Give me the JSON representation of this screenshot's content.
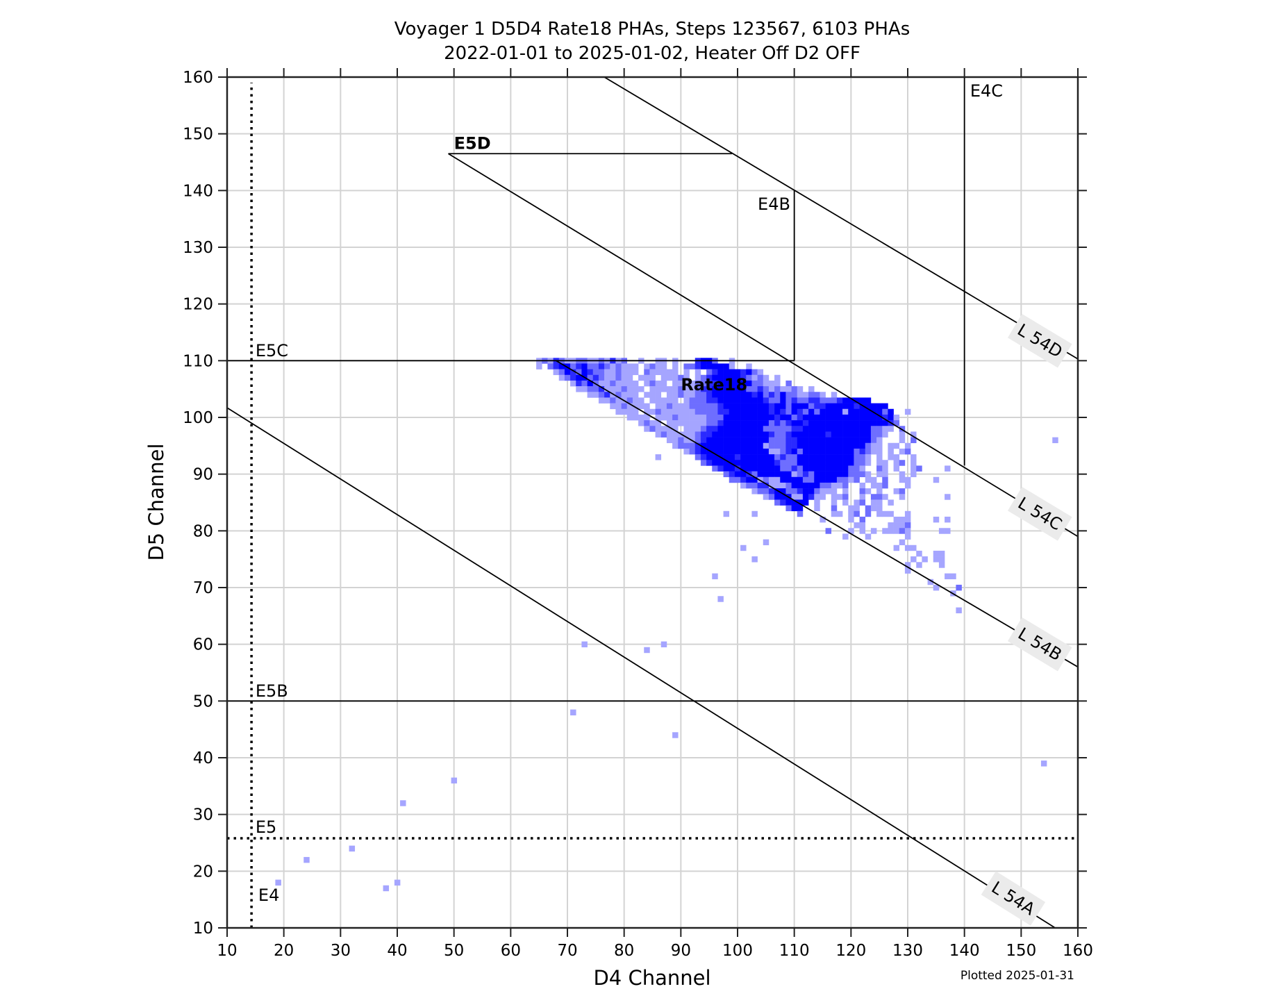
{
  "chart_data": {
    "type": "heatmap",
    "title": "Voyager 1 D5D4 Rate18 PHAs, Steps 123567, 6103 PHAs",
    "subtitle": "2022-01-01 to 2025-01-02, Heater Off D2 OFF",
    "xlabel": "D4 Channel",
    "ylabel": "D5 Channel",
    "xlim": [
      10,
      160
    ],
    "ylim": [
      10,
      160
    ],
    "xticks": [
      "10",
      "20",
      "30",
      "40",
      "50",
      "60",
      "70",
      "80",
      "90",
      "100",
      "110",
      "120",
      "130",
      "140",
      "150",
      "160"
    ],
    "yticks": [
      "10",
      "20",
      "30",
      "40",
      "50",
      "60",
      "70",
      "80",
      "90",
      "100",
      "110",
      "120",
      "130",
      "140",
      "150",
      "160"
    ],
    "grid": true,
    "footer": "Plotted 2025-01-31",
    "level_colors": {
      "a": "#a5a5ff",
      "b": "#6e6eff",
      "c": "#2a2aff",
      "d": "#0000ff"
    },
    "histogram_rows": [
      {
        "d5": 110,
        "d4_start": 65,
        "levels": "abacbaabbaabacab..a..aa.a...cddb..a.................................."
      },
      {
        "d5": 109,
        "d4_start": 65,
        "levels": "a.bcddbcdbbcbabaaa.abaa.a.bbcddddda..a.............................."
      },
      {
        "d5": 108,
        "d4_start": 65,
        "levels": "...abdcbdcbbaabaaa.baaaaa.a.a.bcddddcdba............................."
      },
      {
        "d5": 107,
        "d4_start": 65,
        "levels": "....abcddbcbaabaa.aaa.aaaba.abcdddddcbaba.a.........................."
      },
      {
        "d5": 106,
        "d4_start": 65,
        "levels": "......acbdbaabaaaa.abaa.aaaabbccddddddbbaaa.b........................"
      },
      {
        "d5": 105,
        "d4_start": 65,
        "levels": ".......aabbcaaabaaa.aaaaabaabccddddddbbcbabaaba.a...................."
      },
      {
        "d5": 104,
        "d4_start": 65,
        "levels": ".........aabcabaaa.aaa.aabaabbcdddddddcdbcbdbbaabba.a................"
      },
      {
        "d5": 103,
        "d4_start": 65,
        "levels": "...........aabaabaa.aaaaa.abbbccddddddddcbbdbcbbccbbbcddddd.........."
      },
      {
        "d5": 102,
        "d4_start": 65,
        "levels": ".............aabaaaa.aabaaabbbbbcddddddddcddbdddbccdddddcddddd.......("
      },
      {
        "d5": 101,
        "d4_start": 65,
        "levels": "..............aaaa.aabaaaaaabbbbccdddddddcdcbdcbdbddddaddddddbd..a..."
      },
      {
        "d5": 100,
        "d4_start": 65,
        "levels": "................aaaa.aaabaaaaabbbdddddddddcddbcddddddddddddddcda....."
      },
      {
        "d5": 99,
        "d4_start": 65,
        "levels": "..................abaa.aaaaaaabbcddddddddbcbcddcddddddddddddddcb....."
      },
      {
        "d5": 98,
        "d4_start": 65,
        "levels": "...................abaaaa.aaabccddddddddbbbbbccddddddddddddbbaa.b...."
      },
      {
        "d5": 97,
        "d4_start": 65,
        "levels": ".....................abaaaaabccddddddddddcbbcddddddcdddddddbba..a.a.."
      },
      {
        "d5": 96,
        "d4_start": 65,
        "levels": ".......................aabaabcdddddddddddbbbccdddddddddddddba...a.b.."
      },
      {
        "d5": 95,
        "d4_start": 65,
        "levels": "........................abbbcdddddddddddabbbccddddddddddddbaa.aa.a..."
      },
      {
        "d5": 94,
        "d4_start": 65,
        "levels": "..........................abcddddddddddddaabcdbdddddddddbcbaa.a.ab..."
      },
      {
        "d5": 93,
        "d4_start": 65,
        "levels": "............................bcdddddcddddddbcbbddddddddddbba.a.aa..a.."
      },
      {
        "d5": 92,
        "d4_start": 65,
        "levels": ".............................bcdddddddddddcbbbddddddddddbba.aa.ab.a.."
      },
      {
        "d5": 91,
        "d4_start": 65,
        "levels": "...............................bcddcdddddddbbcbddddddddbba..ba.a..ab."
      },
      {
        "d5": 90,
        "d4_start": 65,
        "levels": ".................................bcddcbddddddabcbddddddbbba.aa..a.a.."
      },
      {
        "d5": 89,
        "d4_start": 65,
        "levels": "..................................bbcddabaaddddbbddddbbab.aa.b..aa..."
      },
      {
        "d5": 88,
        "d4_start": 65,
        "levels": "....................................abbccaaabdddddbbaab..a.aab...a..."
      },
      {
        "d5": 87,
        "d4_start": 65,
        "levels": "......................................abbcddbbcddbaaa.a..ba.a..ab...."
      },
      {
        "d5": 86,
        "d4_start": 65,
        "levels": "........................................abdddaadcaa.aab..a.bba..a...."
      },
      {
        "d5": 85,
        "d4_start": 65,
        "levels": "..........................................bcdddd.a..a.a.ab.aa.a......"
      },
      {
        "d5": 84,
        "d4_start": 65,
        "levels": "............................................bdd..a..b..aa.baa........"
      },
      {
        "d5": 83,
        "d4_start": 65,
        "levels": "..............................................b.....aa.ab.b.aaa..a..."
      }
    ],
    "points": [
      [
        115,
        82,
        "a"
      ],
      [
        120,
        82,
        "a"
      ],
      [
        122,
        82,
        "b"
      ],
      [
        128,
        82,
        "a"
      ],
      [
        129,
        82,
        "a"
      ],
      [
        130,
        82,
        "a"
      ],
      [
        121,
        81,
        "a"
      ],
      [
        122,
        81,
        "a"
      ],
      [
        127,
        81,
        "a"
      ],
      [
        128,
        81,
        "a"
      ],
      [
        129,
        81,
        "a"
      ],
      [
        130,
        81,
        "b"
      ],
      [
        116,
        80,
        "b"
      ],
      [
        120,
        80,
        "a"
      ],
      [
        122,
        80,
        "a"
      ],
      [
        124,
        80,
        "a"
      ],
      [
        126,
        80,
        "a"
      ],
      [
        127,
        80,
        "a"
      ],
      [
        128,
        80,
        "a"
      ],
      [
        129,
        80,
        "b"
      ],
      [
        130,
        80,
        "a"
      ],
      [
        119,
        79,
        "a"
      ],
      [
        123,
        79,
        "a"
      ],
      [
        130,
        79,
        "a"
      ],
      [
        105,
        78,
        "a"
      ],
      [
        129,
        78,
        "a"
      ],
      [
        101,
        77,
        "a"
      ],
      [
        128,
        77,
        "a"
      ],
      [
        130,
        77,
        "a"
      ],
      [
        131,
        77,
        "a"
      ],
      [
        132,
        76,
        "a"
      ],
      [
        135,
        76,
        "a"
      ],
      [
        136,
        76,
        "a"
      ],
      [
        103,
        75,
        "a"
      ],
      [
        131,
        75,
        "a"
      ],
      [
        133,
        75,
        "a"
      ],
      [
        135,
        75,
        "a"
      ],
      [
        136,
        75,
        "a"
      ],
      [
        130,
        74,
        "a"
      ],
      [
        132,
        74,
        "a"
      ],
      [
        136,
        74,
        "a"
      ],
      [
        130,
        73,
        "a"
      ],
      [
        96,
        72,
        "a"
      ],
      [
        137,
        72,
        "a"
      ],
      [
        138,
        72,
        "a"
      ],
      [
        134,
        71,
        "a"
      ],
      [
        135,
        70,
        "a"
      ],
      [
        139,
        70,
        "b"
      ],
      [
        138,
        69,
        "a"
      ],
      [
        97,
        68,
        "a"
      ],
      [
        139,
        66,
        "a"
      ],
      [
        98,
        83,
        "a"
      ],
      [
        103,
        83,
        "a"
      ],
      [
        86,
        93,
        "a"
      ],
      [
        137,
        91,
        "a"
      ],
      [
        135,
        89,
        "a"
      ],
      [
        137,
        86,
        "a"
      ],
      [
        135,
        82,
        "a"
      ],
      [
        137,
        82,
        "a"
      ],
      [
        136,
        80,
        "a"
      ],
      [
        137,
        80,
        "a"
      ],
      [
        156,
        96,
        "a"
      ],
      [
        154,
        39,
        "a"
      ],
      [
        50,
        36,
        "a"
      ],
      [
        41,
        32,
        "a"
      ],
      [
        32,
        24,
        "a"
      ],
      [
        24,
        22,
        "a"
      ],
      [
        19,
        18,
        "a"
      ],
      [
        38,
        17,
        "a"
      ],
      [
        40,
        18,
        "a"
      ],
      [
        73,
        60,
        "a"
      ],
      [
        84,
        59,
        "a"
      ],
      [
        87,
        60,
        "a"
      ],
      [
        71,
        48,
        "a"
      ],
      [
        89,
        44,
        "a"
      ]
    ],
    "boundaries": [
      {
        "id": "L54A",
        "style": "solid",
        "points": [
          [
            10,
            101.7
          ],
          [
            156,
            10
          ]
        ]
      },
      {
        "id": "L54B",
        "style": "solid",
        "points": [
          [
            68,
            110
          ],
          [
            160,
            56
          ]
        ]
      },
      {
        "id": "L54C",
        "style": "solid",
        "points": [
          [
            49,
            146.5
          ],
          [
            160,
            79
          ]
        ]
      },
      {
        "id": "L54D",
        "style": "solid",
        "points": [
          [
            76.5,
            160
          ],
          [
            160,
            110.3
          ]
        ]
      },
      {
        "id": "E5D",
        "style": "solid",
        "points": [
          [
            49,
            146.5
          ],
          [
            99,
            146.5
          ]
        ]
      },
      {
        "id": "E4B",
        "style": "solid",
        "points": [
          [
            110,
            110
          ],
          [
            110,
            140
          ]
        ]
      },
      {
        "id": "E4C",
        "style": "solid",
        "points": [
          [
            140,
            160
          ],
          [
            140,
            91.5
          ]
        ]
      },
      {
        "id": "E5C",
        "style": "solid",
        "points": [
          [
            10,
            110
          ],
          [
            110,
            110
          ]
        ]
      },
      {
        "id": "E5B",
        "style": "solid",
        "points": [
          [
            10,
            50
          ],
          [
            160,
            50
          ]
        ]
      },
      {
        "id": "E4",
        "style": "dotted",
        "points": [
          [
            14.3,
            10
          ],
          [
            14.3,
            159
          ]
        ]
      },
      {
        "id": "E5",
        "style": "dotted",
        "points": [
          [
            10,
            25.8
          ],
          [
            160,
            25.8
          ]
        ]
      }
    ],
    "region_labels": [
      {
        "text": "E5D",
        "bold": true,
        "x": 50,
        "y": 147.3,
        "anchor": "start"
      },
      {
        "text": "E4B",
        "bold": false,
        "x": 109.3,
        "y": 136.6,
        "anchor": "end"
      },
      {
        "text": "E4C",
        "bold": false,
        "x": 141,
        "y": 156.6,
        "anchor": "start"
      },
      {
        "text": "E5C",
        "bold": false,
        "x": 15,
        "y": 110.8,
        "anchor": "start"
      },
      {
        "text": "E5B",
        "bold": false,
        "x": 15,
        "y": 50.8,
        "anchor": "start"
      },
      {
        "text": "E5",
        "bold": false,
        "x": 15,
        "y": 26.8,
        "anchor": "start"
      },
      {
        "text": "E4",
        "bold": false,
        "x": 15.5,
        "y": 14.8,
        "anchor": "start"
      },
      {
        "text": "Rate18",
        "bold": true,
        "x": 90,
        "y": 104.8,
        "anchor": "start"
      }
    ],
    "line_labels": [
      {
        "text": "L 54D",
        "x": 153.3,
        "y": 113.5,
        "angle": 31
      },
      {
        "text": "L 54C",
        "x": 153.3,
        "y": 83,
        "angle": 31
      },
      {
        "text": "L 54B",
        "x": 153.3,
        "y": 60,
        "angle": 31
      },
      {
        "text": "L 54A",
        "x": 148.6,
        "y": 15.2,
        "angle": 32
      }
    ]
  }
}
